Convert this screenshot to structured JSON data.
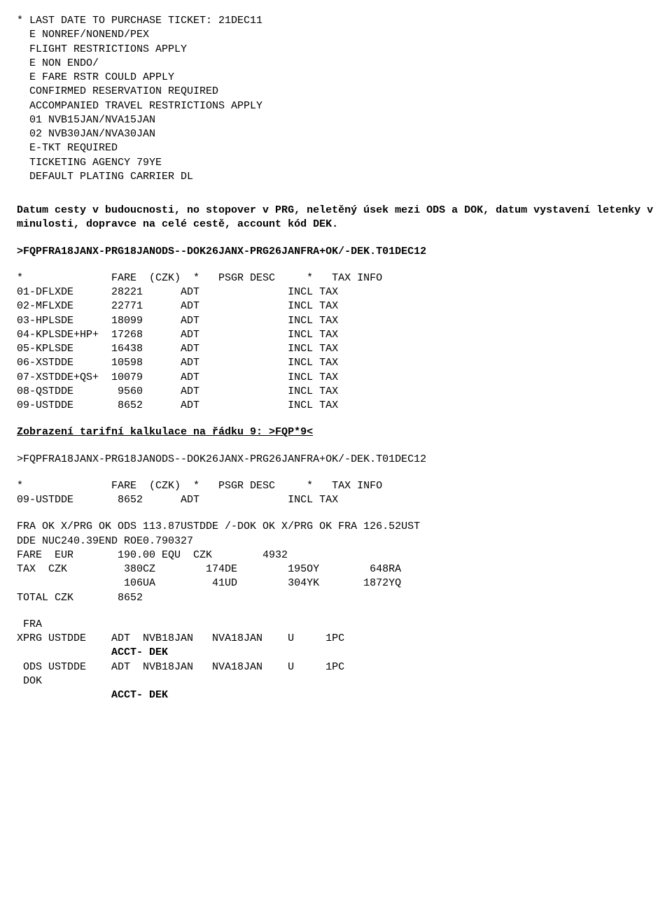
{
  "ticketNotes": [
    "* LAST DATE TO PURCHASE TICKET: 21DEC11",
    "  E NONREF/NONEND/PEX",
    "  FLIGHT RESTRICTIONS APPLY",
    "  E NON ENDO/",
    "  E FARE RSTR COULD APPLY",
    "  CONFIRMED RESERVATION REQUIRED",
    "  ACCOMPANIED TRAVEL RESTRICTIONS APPLY",
    "  01 NVB15JAN/NVA15JAN",
    "  02 NVB30JAN/NVA30JAN",
    "  E-TKT REQUIRED",
    "  TICKETING AGENCY 79YE",
    "  DEFAULT PLATING CARRIER DL"
  ],
  "section1Intro": "Datum cesty v budoucnosti, no stopover v PRG, neletěný úsek mezi ODS a DOK, datum vystavení letenky v minulosti, dopravce na celé cestě, account kód DEK.",
  "query1": ">FQPFRA18JANX-PRG18JANODS--DOK26JANX-PRG26JANFRA+OK/-DEK.T01DEC12",
  "fareHeader": "*              FARE  (CZK)  *   PSGR DESC     *   TAX INFO",
  "fareTable1": [
    {
      "code": "01-DFLXDE",
      "fare": "28221",
      "psgr": "ADT",
      "tax": "INCL TAX"
    },
    {
      "code": "02-MFLXDE",
      "fare": "22771",
      "psgr": "ADT",
      "tax": "INCL TAX"
    },
    {
      "code": "03-HPLSDE",
      "fare": "18099",
      "psgr": "ADT",
      "tax": "INCL TAX"
    },
    {
      "code": "04-KPLSDE+HP+",
      "fare": "17268",
      "psgr": "ADT",
      "tax": "INCL TAX"
    },
    {
      "code": "05-KPLSDE",
      "fare": "16438",
      "psgr": "ADT",
      "tax": "INCL TAX"
    },
    {
      "code": "06-XSTDDE",
      "fare": "10598",
      "psgr": "ADT",
      "tax": "INCL TAX"
    },
    {
      "code": "07-XSTDDE+QS+",
      "fare": "10079",
      "psgr": "ADT",
      "tax": "INCL TAX"
    },
    {
      "code": "08-QSTDDE",
      "fare": " 9560",
      "psgr": "ADT",
      "tax": "INCL TAX"
    },
    {
      "code": "09-USTDDE",
      "fare": " 8652",
      "psgr": "ADT",
      "tax": "INCL TAX"
    }
  ],
  "calcTitle": "Zobrazení tarifní kalkulace na řádku 9: >FQP*9<",
  "query2": ">FQPFRA18JANX-PRG18JANODS--DOK26JANX-PRG26JANFRA+OK/-DEK.T01DEC12",
  "fareTable2": [
    {
      "code": "09-USTDDE",
      "fare": " 8652",
      "psgr": "ADT",
      "tax": "INCL TAX"
    }
  ],
  "calcLines": [
    "FRA OK X/PRG OK ODS 113.87USTDDE /-DOK OK X/PRG OK FRA 126.52UST",
    "DDE NUC240.39END ROE0.790327",
    "FARE  EUR       190.00 EQU  CZK        4932",
    "TAX  CZK         380CZ        174DE        195OY        648RA",
    "                 106UA         41UD        304YK       1872YQ",
    "TOTAL CZK       8652"
  ],
  "segLines": [
    {
      "t": " FRA",
      "b": false
    },
    {
      "t": "XPRG USTDDE    ADT  NVB18JAN   NVA18JAN    U     1PC",
      "b": false
    },
    {
      "t": "               ACCT- DEK",
      "b": true
    },
    {
      "t": " ODS USTDDE    ADT  NVB18JAN   NVA18JAN    U     1PC",
      "b": false
    },
    {
      "t": " DOK",
      "b": false
    },
    {
      "t": "               ACCT- DEK",
      "b": true
    }
  ],
  "colwidths": {
    "code": 15,
    "fare": 11,
    "psgr": 17
  }
}
